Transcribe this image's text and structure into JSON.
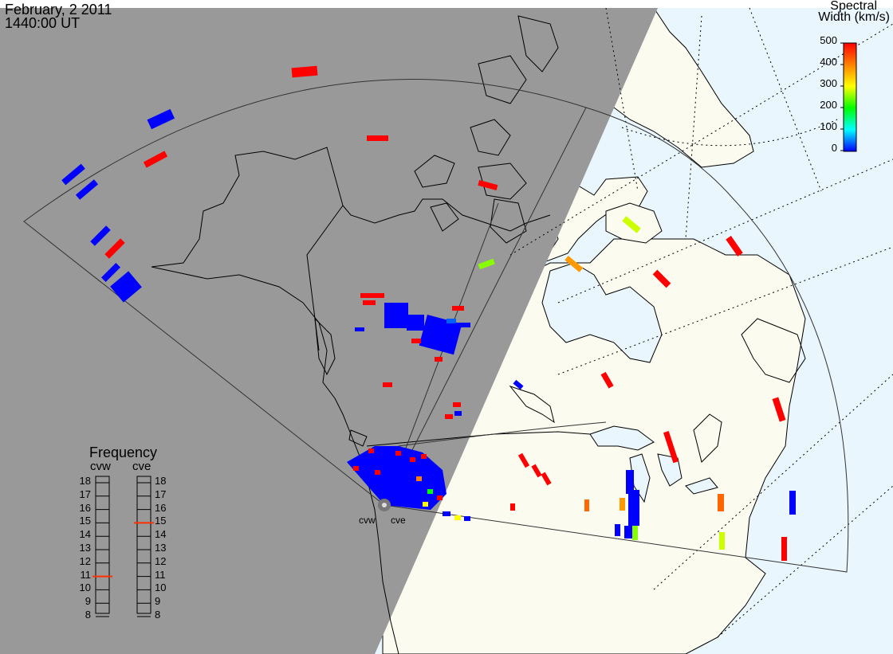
{
  "header": {
    "date": "February, 2 2011",
    "time": "1440:00 UT"
  },
  "colorbar": {
    "title_line1": "Spectral",
    "title_line2": "Width (km/s)",
    "ticks": [
      "500",
      "400",
      "300",
      "200",
      "100",
      "0"
    ],
    "colors": [
      "#ff0000",
      "#ff8000",
      "#ffff00",
      "#00ff00",
      "#00ffff",
      "#0000ff"
    ]
  },
  "frequency_panel": {
    "title": "Frequency",
    "radars": [
      {
        "label": "cvw",
        "active_value": 11,
        "marker_color": "#ff3000"
      },
      {
        "label": "cve",
        "active_value": 15,
        "marker_color": "#ff3000"
      }
    ],
    "scale": [
      "18",
      "17",
      "16",
      "15",
      "14",
      "13",
      "12",
      "11",
      "10",
      "9",
      "8"
    ]
  },
  "sites": [
    {
      "label": "cvw"
    },
    {
      "label": "cve"
    }
  ],
  "colors": {
    "night": "#999999",
    "day_land": "#fbfbf0",
    "day_ocean": "#eaf6fd"
  }
}
